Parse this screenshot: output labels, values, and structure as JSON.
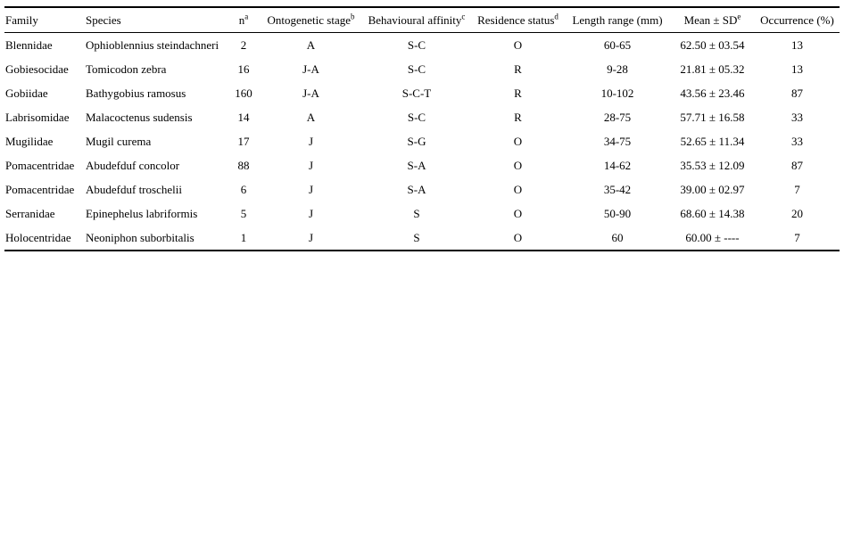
{
  "table": {
    "columns": [
      {
        "label": "Family",
        "sup": "",
        "align": "left"
      },
      {
        "label": "Species",
        "sup": "",
        "align": "left"
      },
      {
        "label": "n",
        "sup": "a",
        "align": "center"
      },
      {
        "label": "Ontogenetic stage",
        "sup": "b",
        "align": "center"
      },
      {
        "label": "Behavioural affinity",
        "sup": "c",
        "align": "center"
      },
      {
        "label": "Residence status",
        "sup": "d",
        "align": "center"
      },
      {
        "label": "Length range (mm)",
        "sup": "",
        "align": "center"
      },
      {
        "label": "Mean ± SD",
        "sup": "e",
        "align": "center"
      },
      {
        "label": "Occurrence (%)",
        "sup": "",
        "align": "center"
      }
    ],
    "rows": [
      [
        "Blennidae",
        "Ophioblennius steindachneri",
        "2",
        "A",
        "S-C",
        "O",
        "60-65",
        "62.50 ± 03.54",
        "13"
      ],
      [
        "Gobiesocidae",
        "Tomicodon zebra",
        "16",
        "J-A",
        "S-C",
        "R",
        "9-28",
        "21.81 ± 05.32",
        "13"
      ],
      [
        "Gobiidae",
        "Bathygobius ramosus",
        "160",
        "J-A",
        "S-C-T",
        "R",
        "10-102",
        "43.56 ± 23.46",
        "87"
      ],
      [
        "Labrisomidae",
        "Malacoctenus sudensis",
        "14",
        "A",
        "S-C",
        "R",
        "28-75",
        "57.71 ± 16.58",
        "33"
      ],
      [
        "Mugilidae",
        "Mugil curema",
        "17",
        "J",
        "S-G",
        "O",
        "34-75",
        "52.65 ± 11.34",
        "33"
      ],
      [
        "Pomacentridae",
        "Abudefduf concolor",
        "88",
        "J",
        "S-A",
        "O",
        "14-62",
        "35.53 ± 12.09",
        "87"
      ],
      [
        "Pomacentridae",
        "Abudefduf troschelii",
        "6",
        "J",
        "S-A",
        "O",
        "35-42",
        "39.00 ± 02.97",
        "7"
      ],
      [
        "Serranidae",
        "Epinephelus labriformis",
        "5",
        "J",
        "S",
        "O",
        "50-90",
        "68.60 ± 14.38",
        "20"
      ],
      [
        "Holocentridae",
        "Neoniphon suborbitalis",
        "1",
        "J",
        "S",
        "O",
        "60",
        "60.00 ± ----",
        "7"
      ]
    ],
    "colors": {
      "text": "#000000",
      "background": "#ffffff",
      "border": "#000000"
    }
  },
  "chart_data": {
    "type": "table",
    "title": "",
    "columns": [
      "Family",
      "Species",
      "n",
      "Ontogenetic stage",
      "Behavioural affinity",
      "Residence status",
      "Length range (mm)",
      "Mean ± SD",
      "Occurrence (%)"
    ],
    "footnote_markers": {
      "n": "a",
      "Ontogenetic stage": "b",
      "Behavioural affinity": "c",
      "Residence status": "d",
      "Mean ± SD": "e"
    },
    "rows": [
      [
        "Blennidae",
        "Ophioblennius steindachneri",
        2,
        "A",
        "S-C",
        "O",
        "60-65",
        "62.50 ± 03.54",
        13
      ],
      [
        "Gobiesocidae",
        "Tomicodon zebra",
        16,
        "J-A",
        "S-C",
        "R",
        "9-28",
        "21.81 ± 05.32",
        13
      ],
      [
        "Gobiidae",
        "Bathygobius ramosus",
        160,
        "J-A",
        "S-C-T",
        "R",
        "10-102",
        "43.56 ± 23.46",
        87
      ],
      [
        "Labrisomidae",
        "Malacoctenus sudensis",
        14,
        "A",
        "S-C",
        "R",
        "28-75",
        "57.71 ± 16.58",
        33
      ],
      [
        "Mugilidae",
        "Mugil curema",
        17,
        "J",
        "S-G",
        "O",
        "34-75",
        "52.65 ± 11.34",
        33
      ],
      [
        "Pomacentridae",
        "Abudefduf concolor",
        88,
        "J",
        "S-A",
        "O",
        "14-62",
        "35.53 ± 12.09",
        87
      ],
      [
        "Pomacentridae",
        "Abudefduf troschelii",
        6,
        "J",
        "S-A",
        "O",
        "35-42",
        "39.00 ± 02.97",
        7
      ],
      [
        "Serranidae",
        "Epinephelus labriformis",
        5,
        "J",
        "S",
        "O",
        "50-90",
        "68.60 ± 14.38",
        20
      ],
      [
        "Holocentridae",
        "Neoniphon suborbitalis",
        1,
        "J",
        "S",
        "O",
        "60",
        "60.00 ± ----",
        7
      ]
    ]
  }
}
